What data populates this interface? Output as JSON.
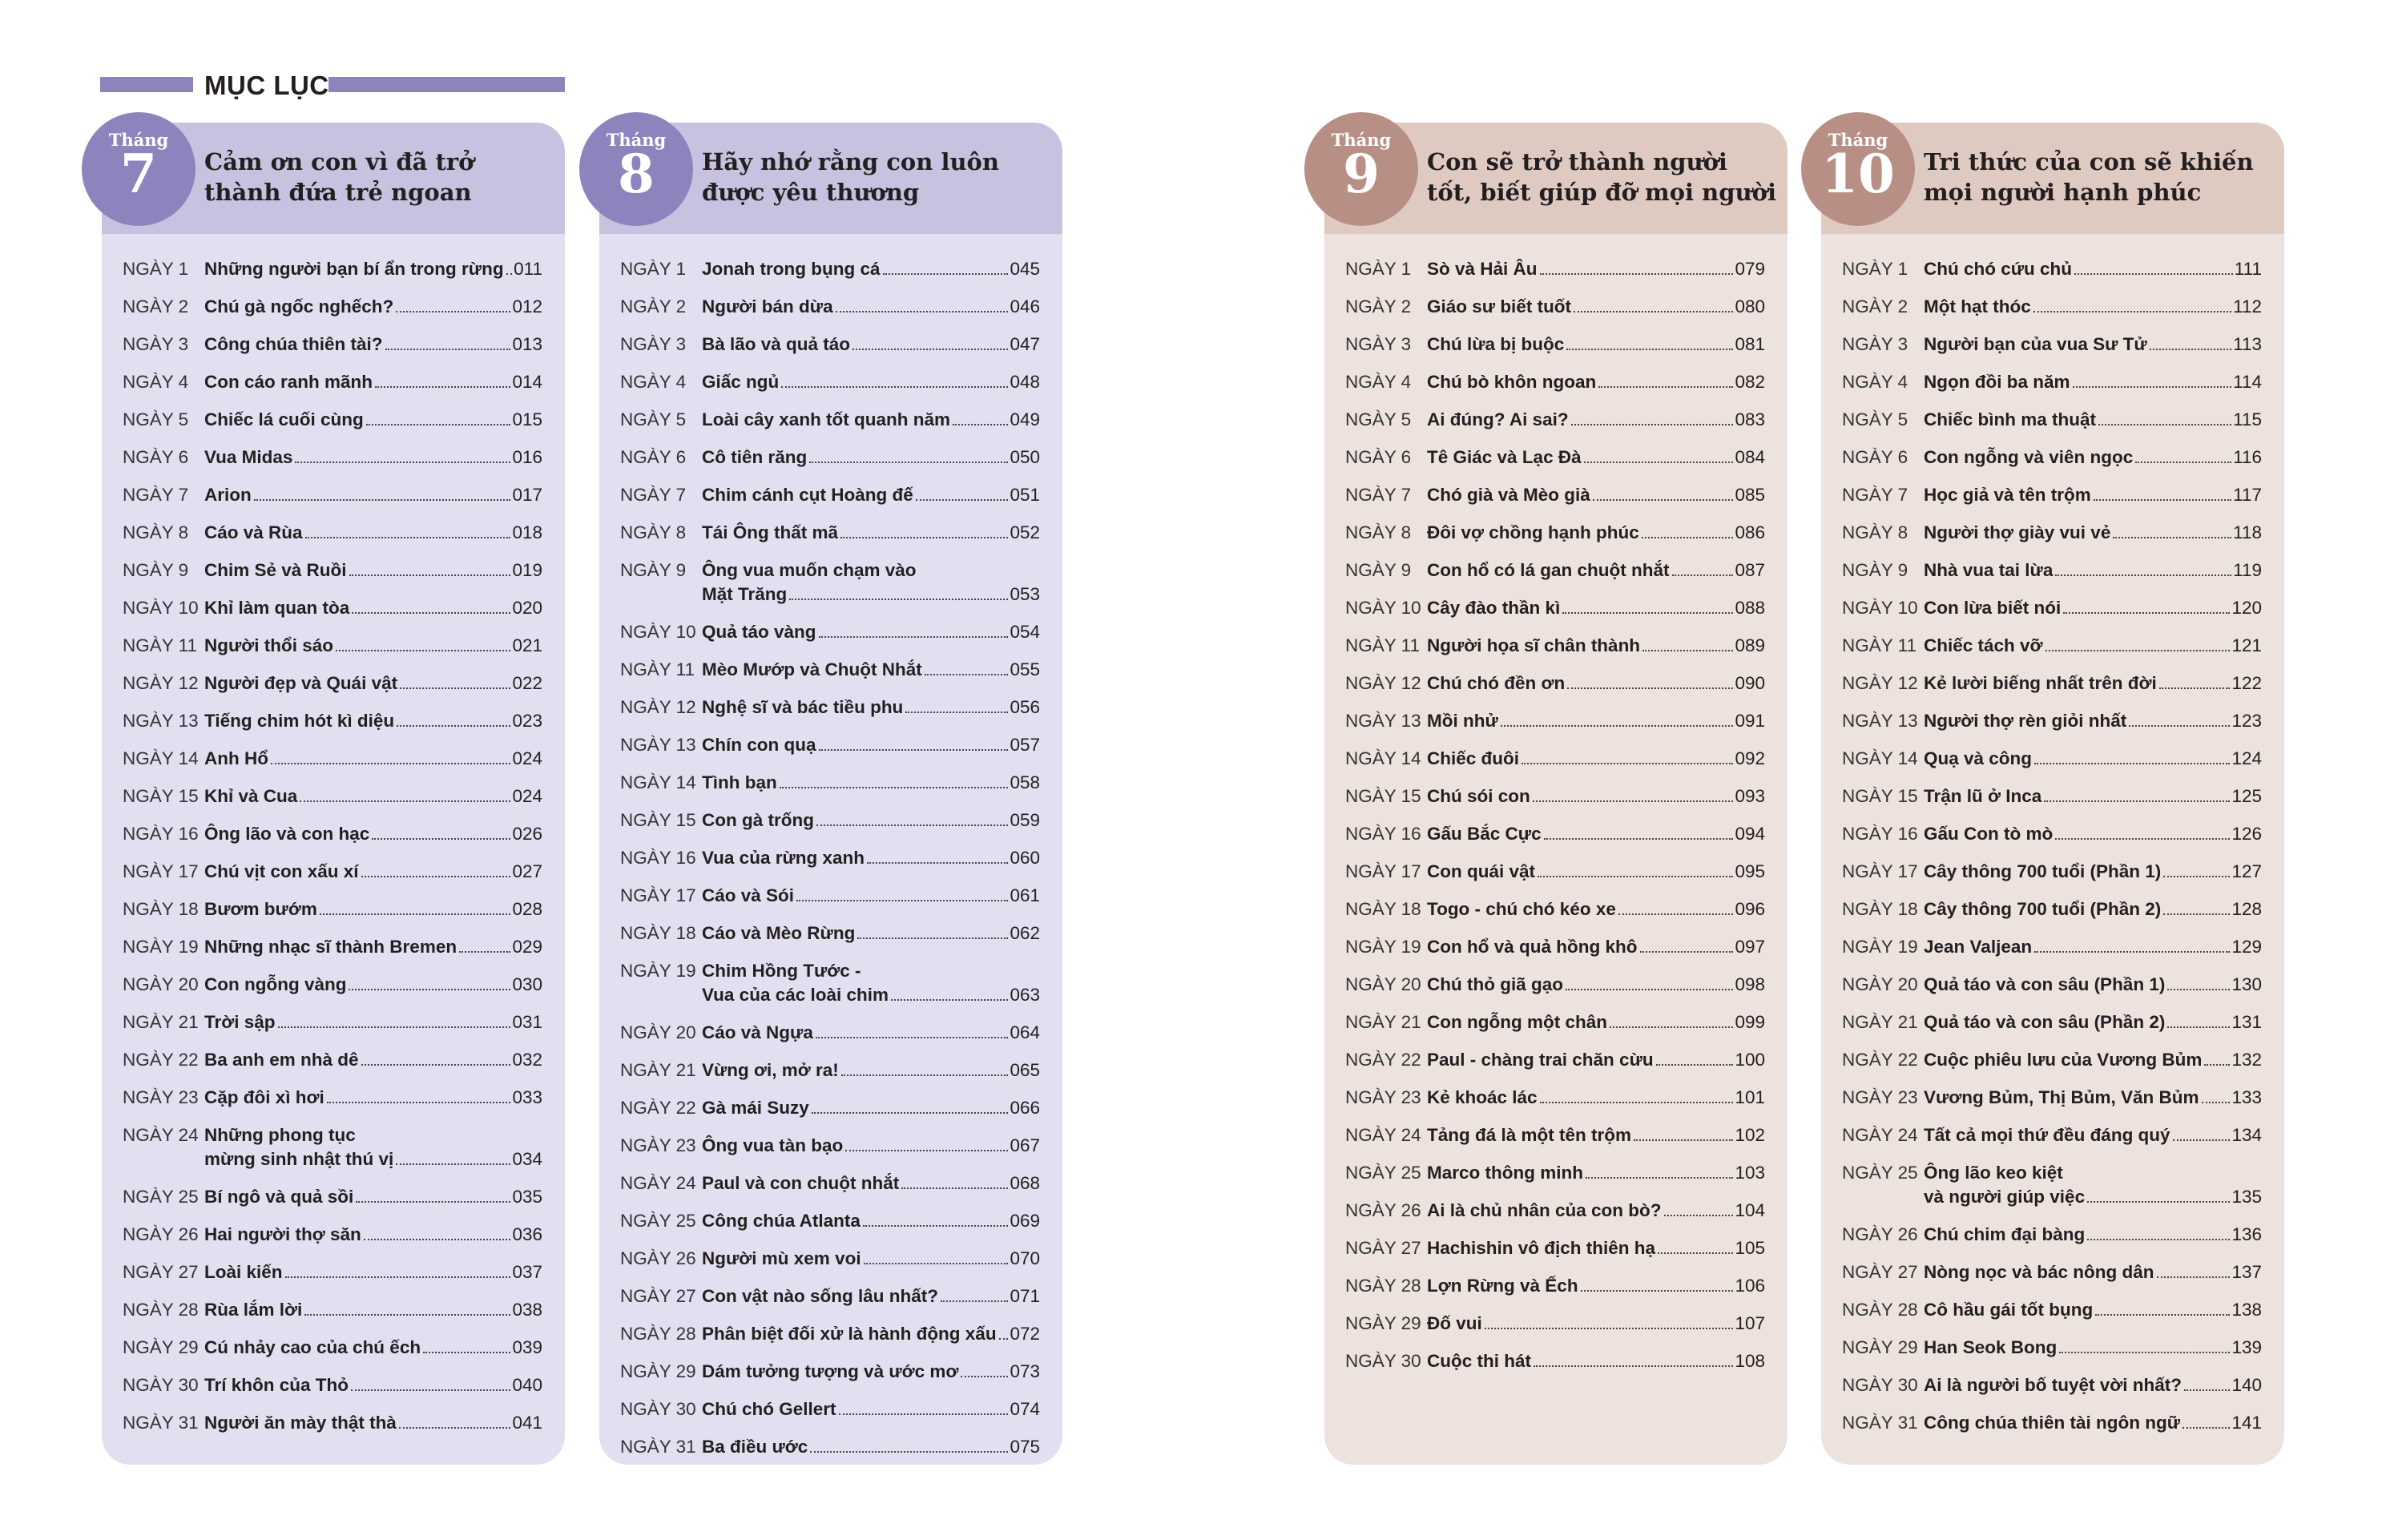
{
  "header": {
    "title": "MỤC LỤC"
  },
  "colors": {
    "purple_accent": "#8e84bd",
    "purple_band": "#c6c2df",
    "purple_body": "#e2dff0",
    "brown_accent": "#b88f84",
    "brown_band": "#dfcac2",
    "brown_body": "#ede2de"
  },
  "months": [
    {
      "prefix": "Tháng",
      "number": "7",
      "theme": "purple",
      "title": "Cảm ơn con vì đã trở thành đứa trẻ ngoan",
      "items": [
        {
          "day": "NGÀY 1",
          "title": "Những người bạn bí ẩn trong rừng",
          "page": "011"
        },
        {
          "day": "NGÀY 2",
          "title": "Chú gà ngốc nghếch?",
          "page": "012"
        },
        {
          "day": "NGÀY 3",
          "title": "Công chúa thiên tài?",
          "page": "013"
        },
        {
          "day": "NGÀY 4",
          "title": "Con cáo ranh mãnh",
          "page": "014"
        },
        {
          "day": "NGÀY 5",
          "title": "Chiếc lá cuối cùng",
          "page": "015"
        },
        {
          "day": "NGÀY 6",
          "title": "Vua Midas",
          "page": "016"
        },
        {
          "day": "NGÀY 7",
          "title": "Arion",
          "page": "017"
        },
        {
          "day": "NGÀY 8",
          "title": "Cáo và Rùa",
          "page": "018"
        },
        {
          "day": "NGÀY 9",
          "title": "Chim Sẻ và Ruồi",
          "page": "019"
        },
        {
          "day": "NGÀY 10",
          "title": "Khỉ làm quan tòa",
          "page": "020"
        },
        {
          "day": "NGÀY 11",
          "title": "Người thổi sáo",
          "page": "021"
        },
        {
          "day": "NGÀY 12",
          "title": "Người đẹp và Quái vật",
          "page": "022"
        },
        {
          "day": "NGÀY 13",
          "title": "Tiếng chim hót kì diệu",
          "page": "023"
        },
        {
          "day": "NGÀY 14",
          "title": "Anh Hổ",
          "page": "024"
        },
        {
          "day": "NGÀY 15",
          "title": "Khỉ và Cua",
          "page": "024"
        },
        {
          "day": "NGÀY 16",
          "title": "Ông lão và con hạc",
          "page": "026"
        },
        {
          "day": "NGÀY 17",
          "title": "Chú vịt con xấu xí",
          "page": "027"
        },
        {
          "day": "NGÀY 18",
          "title": "Bươm bướm",
          "page": "028"
        },
        {
          "day": "NGÀY 19",
          "title": "Những nhạc sĩ thành Bremen",
          "page": "029"
        },
        {
          "day": "NGÀY 20",
          "title": "Con ngỗng vàng",
          "page": "030"
        },
        {
          "day": "NGÀY 21",
          "title": "Trời sập",
          "page": "031"
        },
        {
          "day": "NGÀY 22",
          "title": "Ba anh em nhà dê",
          "page": "032"
        },
        {
          "day": "NGÀY 23",
          "title": "Cặp đôi xì hơi",
          "page": "033"
        },
        {
          "day": "NGÀY 24",
          "title": "Những phong tục",
          "title_cont": "mừng sinh nhật thú vị",
          "page": "034"
        },
        {
          "day": "NGÀY 25",
          "title": "Bí ngô và quả sồi",
          "page": "035"
        },
        {
          "day": "NGÀY 26",
          "title": "Hai người thợ săn",
          "page": "036"
        },
        {
          "day": "NGÀY 27",
          "title": "Loài kiến",
          "page": "037"
        },
        {
          "day": "NGÀY 28",
          "title": "Rùa lắm lời",
          "page": "038"
        },
        {
          "day": "NGÀY 29",
          "title": "Cú nhảy cao của chú ếch",
          "page": "039"
        },
        {
          "day": "NGÀY 30",
          "title": "Trí khôn của Thỏ",
          "page": "040"
        },
        {
          "day": "NGÀY 31",
          "title": "Người ăn mày thật thà",
          "page": "041"
        }
      ]
    },
    {
      "prefix": "Tháng",
      "number": "8",
      "theme": "purple",
      "title": "Hãy nhớ rằng con luôn được yêu thương",
      "items": [
        {
          "day": "NGÀY 1",
          "title": "Jonah trong bụng cá",
          "page": "045"
        },
        {
          "day": "NGÀY 2",
          "title": "Người bán dừa",
          "page": "046"
        },
        {
          "day": "NGÀY 3",
          "title": "Bà lão và quả táo",
          "page": "047"
        },
        {
          "day": "NGÀY 4",
          "title": "Giấc ngủ",
          "page": "048"
        },
        {
          "day": "NGÀY 5",
          "title": "Loài cây xanh tốt quanh năm",
          "page": "049"
        },
        {
          "day": "NGÀY 6",
          "title": "Cô tiên răng",
          "page": "050"
        },
        {
          "day": "NGÀY 7",
          "title": "Chim cánh cụt Hoàng đế",
          "page": "051"
        },
        {
          "day": "NGÀY 8",
          "title": "Tái Ông thất mã",
          "page": "052"
        },
        {
          "day": "NGÀY 9",
          "title": "Ông vua muốn chạm vào",
          "title_cont": "Mặt Trăng",
          "page": "053"
        },
        {
          "day": "NGÀY 10",
          "title": "Quả táo vàng",
          "page": "054"
        },
        {
          "day": "NGÀY 11",
          "title": "Mèo Mướp và Chuột Nhắt",
          "page": "055"
        },
        {
          "day": "NGÀY 12",
          "title": "Nghệ sĩ và bác tiều phu",
          "page": "056"
        },
        {
          "day": "NGÀY 13",
          "title": "Chín con quạ",
          "page": "057"
        },
        {
          "day": "NGÀY 14",
          "title": "Tình bạn",
          "page": "058"
        },
        {
          "day": "NGÀY 15",
          "title": "Con gà trống",
          "page": "059"
        },
        {
          "day": "NGÀY 16",
          "title": "Vua của rừng xanh",
          "page": "060"
        },
        {
          "day": "NGÀY 17",
          "title": "Cáo và Sói",
          "page": "061"
        },
        {
          "day": "NGÀY 18",
          "title": "Cáo và Mèo Rừng",
          "page": "062"
        },
        {
          "day": "NGÀY 19",
          "title": "Chim Hồng Tước -",
          "title_cont": "Vua của các loài chim",
          "page": "063"
        },
        {
          "day": "NGÀY 20",
          "title": "Cáo và Ngựa",
          "page": "064"
        },
        {
          "day": "NGÀY 21",
          "title": "Vừng ơi, mở ra!",
          "page": "065"
        },
        {
          "day": "NGÀY 22",
          "title": "Gà mái Suzy",
          "page": "066"
        },
        {
          "day": "NGÀY 23",
          "title": "Ông vua tàn bạo",
          "page": "067"
        },
        {
          "day": "NGÀY 24",
          "title": "Paul và con chuột nhắt",
          "page": "068"
        },
        {
          "day": "NGÀY 25",
          "title": "Công chúa Atlanta",
          "page": "069"
        },
        {
          "day": "NGÀY 26",
          "title": "Người mù xem voi",
          "page": "070"
        },
        {
          "day": "NGÀY 27",
          "title": "Con vật nào sống lâu nhất?",
          "page": "071"
        },
        {
          "day": "NGÀY 28",
          "title": "Phân biệt đối xử là hành động xấu",
          "page": "072"
        },
        {
          "day": "NGÀY 29",
          "title": "Dám tưởng tượng và ước mơ",
          "page": "073"
        },
        {
          "day": "NGÀY 30",
          "title": "Chú chó Gellert",
          "page": "074"
        },
        {
          "day": "NGÀY 31",
          "title": "Ba điều ước",
          "page": "075"
        }
      ]
    },
    {
      "prefix": "Tháng",
      "number": "9",
      "theme": "brown",
      "title": "Con sẽ trở thành người tốt, biết giúp đỡ mọi người",
      "items": [
        {
          "day": "NGÀY 1",
          "title": "Sò và Hải Âu",
          "page": "079"
        },
        {
          "day": "NGÀY 2",
          "title": "Giáo sư biết tuốt",
          "page": "080"
        },
        {
          "day": "NGÀY 3",
          "title": "Chú lừa bị buộc",
          "page": "081"
        },
        {
          "day": "NGÀY 4",
          "title": "Chú bò khôn ngoan",
          "page": "082"
        },
        {
          "day": "NGÀY 5",
          "title": "Ai đúng? Ai sai?",
          "page": "083"
        },
        {
          "day": "NGÀY 6",
          "title": "Tê Giác và Lạc Đà",
          "page": "084"
        },
        {
          "day": "NGÀY 7",
          "title": "Chó già và Mèo già",
          "page": "085"
        },
        {
          "day": "NGÀY 8",
          "title": "Đôi vợ chồng hạnh phúc",
          "page": "086"
        },
        {
          "day": "NGÀY 9",
          "title": "Con hổ có lá gan chuột nhắt",
          "page": "087"
        },
        {
          "day": "NGÀY 10",
          "title": "Cây đào thần kì",
          "page": "088"
        },
        {
          "day": "NGÀY 11",
          "title": "Người họa sĩ chân thành",
          "page": "089"
        },
        {
          "day": "NGÀY 12",
          "title": "Chú chó đền ơn",
          "page": "090"
        },
        {
          "day": "NGÀY 13",
          "title": "Mồi nhử",
          "page": "091"
        },
        {
          "day": "NGÀY 14",
          "title": "Chiếc đuôi",
          "page": "092"
        },
        {
          "day": "NGÀY 15",
          "title": "Chú sói con",
          "page": "093"
        },
        {
          "day": "NGÀY 16",
          "title": "Gấu Bắc Cực",
          "page": "094"
        },
        {
          "day": "NGÀY 17",
          "title": "Con quái vật",
          "page": "095"
        },
        {
          "day": "NGÀY 18",
          "title": "Togo - chú chó kéo xe",
          "page": "096"
        },
        {
          "day": "NGÀY 19",
          "title": "Con hổ và quả hồng khô",
          "page": "097"
        },
        {
          "day": "NGÀY 20",
          "title": "Chú thỏ giã gạo",
          "page": "098"
        },
        {
          "day": "NGÀY 21",
          "title": "Con ngỗng một chân",
          "page": "099"
        },
        {
          "day": "NGÀY 22",
          "title": "Paul - chàng trai chăn cừu",
          "page": "100"
        },
        {
          "day": "NGÀY 23",
          "title": "Kẻ khoác lác",
          "page": "101"
        },
        {
          "day": "NGÀY 24",
          "title": "Tảng đá là một tên trộm",
          "page": "102"
        },
        {
          "day": "NGÀY 25",
          "title": "Marco thông minh",
          "page": "103"
        },
        {
          "day": "NGÀY 26",
          "title": "Ai là chủ nhân của con bò?",
          "page": "104"
        },
        {
          "day": "NGÀY 27",
          "title": "Hachishin vô địch thiên hạ",
          "page": "105"
        },
        {
          "day": "NGÀY 28",
          "title": "Lợn Rừng và Ếch",
          "page": "106"
        },
        {
          "day": "NGÀY 29",
          "title": "Đố vui",
          "page": "107"
        },
        {
          "day": "NGÀY 30",
          "title": "Cuộc thi hát",
          "page": "108"
        }
      ]
    },
    {
      "prefix": "Tháng",
      "number": "10",
      "theme": "brown",
      "title": "Tri thức của con sẽ khiến mọi người hạnh phúc",
      "items": [
        {
          "day": "NGÀY 1",
          "title": "Chú chó cứu chủ",
          "page": "111"
        },
        {
          "day": "NGÀY 2",
          "title": "Một hạt thóc",
          "page": "112"
        },
        {
          "day": "NGÀY 3",
          "title": "Người bạn của vua Sư Tử",
          "page": "113"
        },
        {
          "day": "NGÀY 4",
          "title": "Ngọn đồi ba năm",
          "page": "114"
        },
        {
          "day": "NGÀY 5",
          "title": "Chiếc bình ma thuật",
          "page": "115"
        },
        {
          "day": "NGÀY 6",
          "title": "Con ngỗng và viên ngọc",
          "page": "116"
        },
        {
          "day": "NGÀY 7",
          "title": "Học giả và tên trộm",
          "page": "117"
        },
        {
          "day": "NGÀY 8",
          "title": "Người thợ giày vui vẻ",
          "page": "118"
        },
        {
          "day": "NGÀY 9",
          "title": "Nhà vua tai lừa",
          "page": "119"
        },
        {
          "day": "NGÀY 10",
          "title": "Con lừa biết nói",
          "page": "120"
        },
        {
          "day": "NGÀY 11",
          "title": "Chiếc tách vỡ",
          "page": "121"
        },
        {
          "day": "NGÀY 12",
          "title": "Kẻ lười biếng nhất trên đời",
          "page": "122"
        },
        {
          "day": "NGÀY 13",
          "title": "Người thợ rèn giỏi nhất",
          "page": "123"
        },
        {
          "day": "NGÀY 14",
          "title": "Quạ và công",
          "page": "124"
        },
        {
          "day": "NGÀY 15",
          "title": "Trận lũ ở Inca",
          "page": "125"
        },
        {
          "day": "NGÀY 16",
          "title": "Gấu Con tò mò",
          "page": "126"
        },
        {
          "day": "NGÀY 17",
          "title": "Cây thông 700 tuổi (Phần 1)",
          "page": "127"
        },
        {
          "day": "NGÀY 18",
          "title": "Cây thông 700 tuổi (Phần 2)",
          "page": "128"
        },
        {
          "day": "NGÀY 19",
          "title": "Jean Valjean",
          "page": "129"
        },
        {
          "day": "NGÀY 20",
          "title": "Quả táo và con sâu (Phần 1)",
          "page": "130"
        },
        {
          "day": "NGÀY 21",
          "title": "Quả táo và con sâu (Phần 2)",
          "page": "131"
        },
        {
          "day": "NGÀY 22",
          "title": "Cuộc phiêu lưu của Vương Bủm",
          "page": "132"
        },
        {
          "day": "NGÀY 23",
          "title": "Vương Bủm, Thị Bủm, Văn Bủm",
          "page": "133"
        },
        {
          "day": "NGÀY 24",
          "title": "Tất cả mọi thứ đều đáng quý",
          "page": "134"
        },
        {
          "day": "NGÀY 25",
          "title": "Ông lão keo kiệt",
          "title_cont": "và người giúp việc",
          "page": "135"
        },
        {
          "day": "NGÀY 26",
          "title": "Chú chim đại bàng",
          "page": "136"
        },
        {
          "day": "NGÀY 27",
          "title": "Nòng nọc và bác nông dân",
          "page": "137"
        },
        {
          "day": "NGÀY 28",
          "title": "Cô hầu gái tốt bụng",
          "page": "138"
        },
        {
          "day": "NGÀY 29",
          "title": "Han Seok Bong",
          "page": "139"
        },
        {
          "day": "NGÀY 30",
          "title": "Ai là người bố tuyệt vời nhất?",
          "page": "140"
        },
        {
          "day": "NGÀY 31",
          "title": "Công chúa thiên tài ngôn ngữ",
          "page": "141"
        }
      ]
    }
  ]
}
